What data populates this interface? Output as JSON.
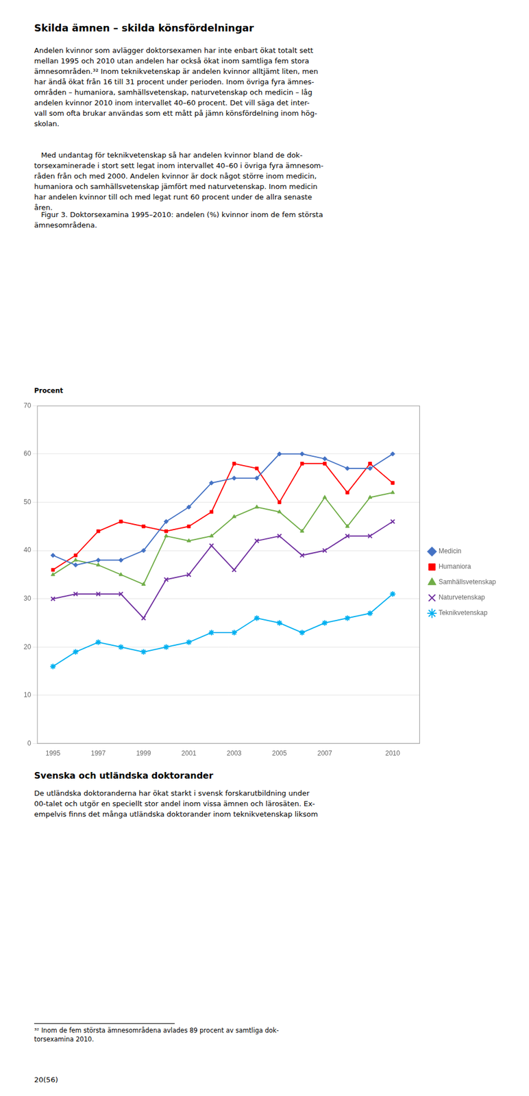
{
  "title": "Skilda ämnen – skilda könsfördelningar",
  "body": [
    [
      "Andelen kvinnor som avlägger doktorsexamen har inte enbart ökat totalt sett",
      "mellan 1995 och 2010 utan andelen har också ökat inom samtliga fem stora",
      "ämnesområden.³² Inom teknikvetenskap är andelen kvinnor alltjämt liten, men",
      "har ändå ökat från 16 till 31 procent under perioden. Inom övriga fyra ämnes-",
      "områden – humaniora, samhällsvetenskap, naturvetenskap och medicin – låg",
      "andelen kvinnor 2010 inom intervallet 40–60 procent. Det vill säga det inter-",
      "vall som ofta brukar användas som ett mått på jämn könsfördelning inom hög-",
      "skolan."
    ],
    [
      "   Med undantag för teknikvetenskap så har andelen kvinnor bland de dok-",
      "torsexaminerade i stort sett legat inom intervallet 40–60 i övriga fyra ämnesom-",
      "råden från och med 2000. Andelen kvinnor är dock något större inom medicin,",
      "humaniora och samhällsvetenskap jämfört med naturvetenskap. Inom medicin",
      "har andelen kvinnor till och med legat runt 60 procent under de allra senaste",
      "åren."
    ]
  ],
  "caption": [
    "   Figur 3. Doktorsexamina 1995–2010: andelen (%) kvinnor inom de fem största",
    "ämnesområdena."
  ],
  "section_title": "Svenska och utländska doktorander",
  "section_body": [
    "De utländska doktoranderna har ökat starkt i svensk forskarutbildning under",
    "00-talet och utgör en speciellt stor andel inom vissa ämnen och lärosäten. Ex-",
    "empelvis finns det många utländska doktorander inom teknikvetenskap liksom"
  ],
  "footnote": [
    "³² Inom de fem största ämnesområdena avlades 89 procent av samtliga dok-",
    "torsexamina 2010."
  ],
  "page_number": "20(56)",
  "chart_data": {
    "type": "line",
    "ylabel": "Procent",
    "x": [
      1995,
      1996,
      1997,
      1998,
      1999,
      2000,
      2001,
      2002,
      2003,
      2004,
      2005,
      2006,
      2007,
      2008,
      2009,
      2010
    ],
    "series": [
      {
        "name": "Medicin",
        "color": "#4472C4",
        "marker": "diamond",
        "values": [
          39,
          37,
          38,
          38,
          40,
          46,
          49,
          54,
          55,
          55,
          60,
          60,
          59,
          57,
          57,
          60
        ]
      },
      {
        "name": "Humaniora",
        "color": "#FF0000",
        "marker": "square",
        "values": [
          36,
          39,
          44,
          46,
          45,
          44,
          45,
          48,
          58,
          57,
          50,
          58,
          58,
          52,
          58,
          54
        ]
      },
      {
        "name": "Samhällsvetenskap",
        "color": "#70AD47",
        "marker": "triangle",
        "values": [
          35,
          38,
          37,
          35,
          33,
          43,
          42,
          43,
          47,
          49,
          48,
          44,
          51,
          45,
          51,
          52
        ]
      },
      {
        "name": "Naturvetenskap",
        "color": "#7030A0",
        "marker": "x",
        "values": [
          30,
          31,
          31,
          31,
          26,
          34,
          35,
          41,
          36,
          42,
          43,
          39,
          40,
          43,
          43,
          46
        ]
      },
      {
        "name": "Teknikvetenskap",
        "color": "#00B0F0",
        "marker": "star",
        "values": [
          16,
          19,
          21,
          20,
          19,
          20,
          21,
          23,
          23,
          26,
          25,
          23,
          25,
          26,
          27,
          31
        ]
      }
    ],
    "xlim": [
      1994.3,
      2011.2
    ],
    "ylim": [
      0,
      70
    ],
    "xticks": [
      1995,
      1997,
      1999,
      2001,
      2003,
      2005,
      2007,
      2010
    ],
    "yticks": [
      0,
      10,
      20,
      30,
      40,
      50,
      60,
      70
    ],
    "grid": "y",
    "legend": "right"
  }
}
